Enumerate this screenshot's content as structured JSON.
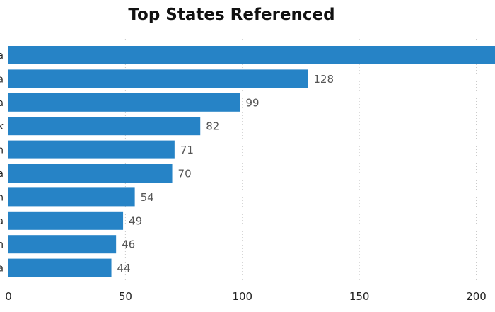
{
  "chart_data": {
    "type": "bar",
    "orientation": "horizontal",
    "title": "Top States Referenced",
    "xlabel": "",
    "ylabel": "",
    "categories": [
      "a",
      "a",
      "a",
      "k",
      "n",
      "a",
      "n",
      "a",
      "n",
      "a"
    ],
    "values": [
      208,
      128,
      99,
      82,
      71,
      70,
      54,
      49,
      46,
      44
    ],
    "data_labels": [
      "",
      "128",
      "99",
      "82",
      "71",
      "70",
      "54",
      "49",
      "46",
      "44"
    ],
    "xlim": [
      0,
      208
    ],
    "xticks": [
      0,
      50,
      100,
      150,
      200
    ],
    "grid": true,
    "bar_color": "#2683c6",
    "grid_color": "#c8c8c8"
  }
}
